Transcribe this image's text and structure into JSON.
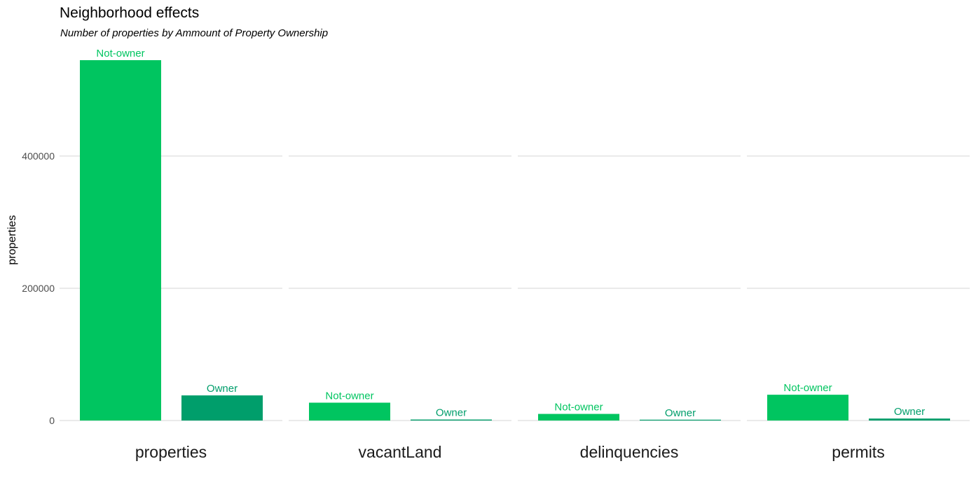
{
  "chart_data": {
    "type": "bar",
    "title": "Neighborhood effects",
    "subtitle": "Number of properties by Ammount of Property Ownership",
    "ylabel": "properties",
    "ylim": [
      0,
      550000
    ],
    "yticks": [
      0,
      200000,
      400000
    ],
    "ytick_labels": [
      "0",
      "200000",
      "400000"
    ],
    "grid": "horizontal",
    "legend": "none",
    "categories": [
      "Not-owner",
      "Owner"
    ],
    "series_colors": {
      "Not-owner": "#00c560",
      "Owner": "#009e6b"
    },
    "label_colors": {
      "Not-owner": "#00c560",
      "Owner": "#009e6b"
    },
    "facets": [
      {
        "name": "properties",
        "values": [
          545000,
          38000
        ]
      },
      {
        "name": "vacantLand",
        "values": [
          27000,
          1500
        ]
      },
      {
        "name": "delinquencies",
        "values": [
          10000,
          900
        ]
      },
      {
        "name": "permits",
        "values": [
          39000,
          3000
        ]
      }
    ]
  }
}
